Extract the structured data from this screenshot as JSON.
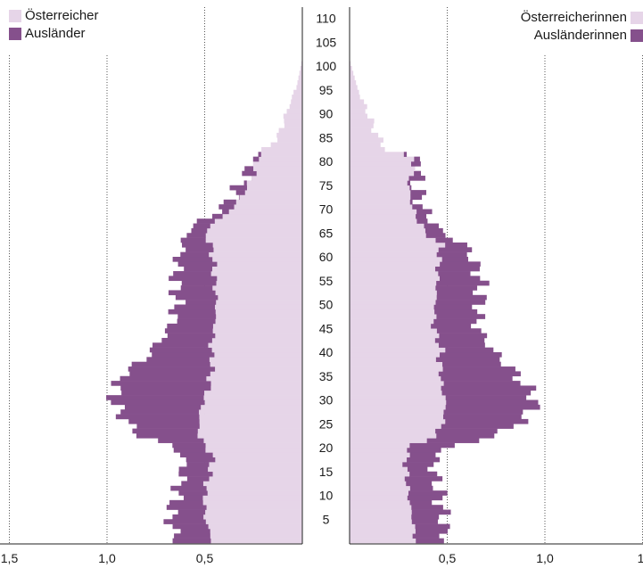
{
  "chart_data": {
    "type": "bar",
    "title": "",
    "age_ticks": [
      "5",
      "10",
      "15",
      "20",
      "25",
      "30",
      "35",
      "40",
      "45",
      "50",
      "55",
      "60",
      "65",
      "70",
      "75",
      "80",
      "85",
      "90",
      "95",
      "100",
      "105",
      "110"
    ],
    "x_ticks_left": [
      "1,5",
      "1,0",
      "0,5"
    ],
    "x_ticks_right": [
      "0,5",
      "1,0",
      "1,"
    ],
    "xlim": [
      0,
      1.5
    ],
    "legend_left": [
      {
        "label": "Österreicher",
        "color": "#e6d5e8"
      },
      {
        "label": "Ausländer",
        "color": "#85508c"
      }
    ],
    "legend_right": [
      {
        "label": "Österreicherinnen",
        "color": "#e6d5e8"
      },
      {
        "label": "Ausländerinnen",
        "color": "#85508c"
      }
    ],
    "age_knots": [
      0,
      5,
      10,
      15,
      18,
      20,
      22,
      25,
      28,
      30,
      32,
      35,
      38,
      40,
      45,
      50,
      55,
      60,
      62,
      65,
      70,
      75,
      78,
      80,
      82,
      85,
      90,
      95,
      100,
      105,
      110
    ],
    "male_austrian_knots": [
      0.46,
      0.5,
      0.5,
      0.47,
      0.46,
      0.5,
      0.53,
      0.53,
      0.52,
      0.5,
      0.48,
      0.47,
      0.46,
      0.47,
      0.45,
      0.44,
      0.45,
      0.46,
      0.47,
      0.5,
      0.35,
      0.27,
      0.24,
      0.24,
      0.19,
      0.12,
      0.08,
      0.03,
      0.005,
      0.002,
      0.0
    ],
    "male_foreign_knots": [
      0.18,
      0.18,
      0.14,
      0.14,
      0.15,
      0.18,
      0.3,
      0.37,
      0.43,
      0.47,
      0.47,
      0.45,
      0.35,
      0.3,
      0.22,
      0.2,
      0.2,
      0.17,
      0.14,
      0.09,
      0.05,
      0.04,
      0.03,
      0.03,
      0.0,
      0.0,
      0.0,
      0.0,
      0.0,
      0.0,
      0.0
    ],
    "female_austrian_knots": [
      0.34,
      0.32,
      0.3,
      0.29,
      0.29,
      0.32,
      0.44,
      0.48,
      0.49,
      0.49,
      0.47,
      0.47,
      0.46,
      0.47,
      0.43,
      0.44,
      0.45,
      0.46,
      0.47,
      0.38,
      0.32,
      0.3,
      0.33,
      0.33,
      0.19,
      0.14,
      0.09,
      0.04,
      0.005,
      0.002,
      0.0
    ],
    "female_foreign_knots": [
      0.15,
      0.16,
      0.16,
      0.14,
      0.15,
      0.22,
      0.3,
      0.4,
      0.45,
      0.46,
      0.44,
      0.38,
      0.32,
      0.26,
      0.22,
      0.23,
      0.22,
      0.16,
      0.12,
      0.08,
      0.05,
      0.04,
      0.03,
      0.03,
      0.0,
      0.0,
      0.0,
      0.0,
      0.0,
      0.0,
      0.0
    ]
  }
}
